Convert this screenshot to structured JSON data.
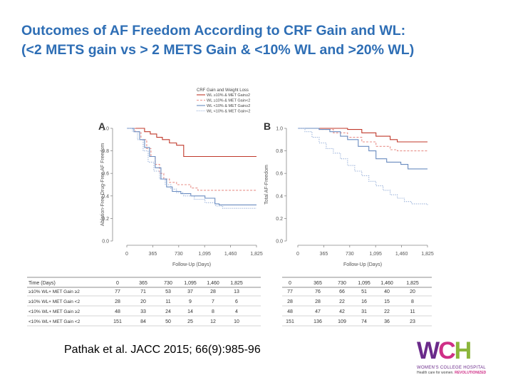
{
  "slide": {
    "title": "Outcomes of AF Freedom According to CRF Gain and WL:\n(<2 METS gain vs > 2 METS Gain & <10% WL and >20% WL)",
    "citation": "Pathak et al. JACC 2015; 66(9):985-96"
  },
  "logo": {
    "letters": [
      "W",
      "C",
      "H"
    ],
    "name": "WOMEN'S COLLEGE HOSPITAL",
    "tagline_prefix": "Health care for women.",
    "tagline_emphasis": "REVOLUTIONIZED"
  },
  "colors": {
    "title": "#2e6eb5",
    "series": [
      "#c0392b",
      "#e8908a",
      "#6a8cc0",
      "#8ea9d6"
    ],
    "axis": "#666666"
  },
  "chart_data": [
    {
      "panel_label": "A",
      "type": "line",
      "step": true,
      "ylabel": "Ablation-Free Drug-Free AF Freedom",
      "xlabel": "Follow-Up (Days)",
      "xlim": [
        0,
        1825
      ],
      "ylim": [
        0,
        1.0
      ],
      "x_ticks": [
        "0",
        "365",
        "730",
        "1,095",
        "1,460",
        "1,825"
      ],
      "y_ticks": [
        "0.0",
        "0.2",
        "0.4",
        "0.6",
        "0.8",
        "1.0"
      ],
      "legend_title": "CRF Gain and Weight Loss",
      "legend_entries": [
        "WL ≥10% & MET Gain≥2",
        "WL ≥10% & MET Gain<2",
        "WL <10% & MET Gain≥2",
        "WL <10% & MET Gain<2"
      ],
      "series": [
        {
          "name": "WL ≥10% & MET Gain≥2",
          "dash": "solid",
          "points": [
            [
              0,
              1.0
            ],
            [
              150,
              1.0
            ],
            [
              250,
              0.97
            ],
            [
              330,
              0.95
            ],
            [
              420,
              0.92
            ],
            [
              500,
              0.9
            ],
            [
              600,
              0.87
            ],
            [
              700,
              0.85
            ],
            [
              800,
              0.75
            ],
            [
              1825,
              0.75
            ]
          ]
        },
        {
          "name": "WL ≥10% & MET Gain<2",
          "dash": "dashed",
          "points": [
            [
              0,
              1.0
            ],
            [
              120,
              0.97
            ],
            [
              200,
              0.9
            ],
            [
              280,
              0.82
            ],
            [
              340,
              0.75
            ],
            [
              400,
              0.68
            ],
            [
              460,
              0.6
            ],
            [
              520,
              0.55
            ],
            [
              600,
              0.52
            ],
            [
              700,
              0.5
            ],
            [
              850,
              0.5
            ],
            [
              900,
              0.47
            ],
            [
              1000,
              0.45
            ],
            [
              1825,
              0.45
            ]
          ]
        },
        {
          "name": "WL <10% & MET Gain≥2",
          "dash": "solid",
          "points": [
            [
              0,
              1.0
            ],
            [
              100,
              0.97
            ],
            [
              180,
              0.9
            ],
            [
              250,
              0.83
            ],
            [
              320,
              0.75
            ],
            [
              400,
              0.65
            ],
            [
              480,
              0.55
            ],
            [
              560,
              0.48
            ],
            [
              640,
              0.44
            ],
            [
              760,
              0.42
            ],
            [
              900,
              0.4
            ],
            [
              1100,
              0.38
            ],
            [
              1240,
              0.33
            ],
            [
              1300,
              0.32
            ],
            [
              1825,
              0.32
            ]
          ]
        },
        {
          "name": "WL <10% & MET Gain<2",
          "dash": "dotted",
          "points": [
            [
              0,
              1.0
            ],
            [
              80,
              0.97
            ],
            [
              150,
              0.9
            ],
            [
              230,
              0.8
            ],
            [
              300,
              0.7
            ],
            [
              380,
              0.62
            ],
            [
              460,
              0.55
            ],
            [
              540,
              0.5
            ],
            [
              620,
              0.46
            ],
            [
              700,
              0.43
            ],
            [
              800,
              0.4
            ],
            [
              950,
              0.37
            ],
            [
              1100,
              0.34
            ],
            [
              1250,
              0.31
            ],
            [
              1350,
              0.29
            ],
            [
              1825,
              0.29
            ]
          ]
        }
      ],
      "risk_table": {
        "header_label": "Time (Days)",
        "time_points": [
          "0",
          "365",
          "730",
          "1,095",
          "1,460",
          "1,825"
        ],
        "rows": [
          {
            "label": "≥10% WL+ MET Gain ≥2",
            "values": [
              "77",
              "71",
              "53",
              "37",
              "28",
              "13"
            ]
          },
          {
            "label": "≥10% WL+ MET Gain <2",
            "values": [
              "28",
              "20",
              "11",
              "9",
              "7",
              "6"
            ]
          },
          {
            "label": "<10% WL+ MET Gain ≥2",
            "values": [
              "48",
              "33",
              "24",
              "14",
              "8",
              "4"
            ]
          },
          {
            "label": "<10% WL+ MET Gain <2",
            "values": [
              "151",
              "84",
              "50",
              "25",
              "12",
              "10"
            ]
          }
        ]
      }
    },
    {
      "panel_label": "B",
      "type": "line",
      "step": true,
      "ylabel": "Total AF-Freedom",
      "xlabel": "Follow-Up (Days)",
      "xlim": [
        0,
        1825
      ],
      "ylim": [
        0,
        1.0
      ],
      "x_ticks": [
        "0",
        "365",
        "730",
        "1,095",
        "1,460",
        "1,825"
      ],
      "y_ticks": [
        "0.0",
        "0.2",
        "0.4",
        "0.6",
        "0.8",
        "1.0"
      ],
      "series": [
        {
          "name": "WL ≥10% & MET Gain≥2",
          "dash": "solid",
          "points": [
            [
              0,
              1.0
            ],
            [
              400,
              1.0
            ],
            [
              700,
              0.99
            ],
            [
              900,
              0.96
            ],
            [
              1100,
              0.93
            ],
            [
              1300,
              0.9
            ],
            [
              1400,
              0.88
            ],
            [
              1825,
              0.88
            ]
          ]
        },
        {
          "name": "WL ≥10% & MET Gain<2",
          "dash": "dashed",
          "points": [
            [
              0,
              1.0
            ],
            [
              300,
              0.99
            ],
            [
              500,
              0.96
            ],
            [
              700,
              0.92
            ],
            [
              900,
              0.88
            ],
            [
              1100,
              0.84
            ],
            [
              1300,
              0.81
            ],
            [
              1400,
              0.8
            ],
            [
              1825,
              0.8
            ]
          ]
        },
        {
          "name": "WL <10% & MET Gain≥2",
          "dash": "solid",
          "points": [
            [
              0,
              1.0
            ],
            [
              300,
              0.99
            ],
            [
              450,
              0.97
            ],
            [
              600,
              0.93
            ],
            [
              700,
              0.9
            ],
            [
              850,
              0.84
            ],
            [
              1000,
              0.8
            ],
            [
              1100,
              0.73
            ],
            [
              1250,
              0.7
            ],
            [
              1450,
              0.68
            ],
            [
              1550,
              0.64
            ],
            [
              1825,
              0.64
            ]
          ]
        },
        {
          "name": "WL <10% & MET Gain<2",
          "dash": "dotted",
          "points": [
            [
              0,
              1.0
            ],
            [
              100,
              0.97
            ],
            [
              200,
              0.92
            ],
            [
              300,
              0.87
            ],
            [
              400,
              0.82
            ],
            [
              500,
              0.78
            ],
            [
              600,
              0.73
            ],
            [
              700,
              0.67
            ],
            [
              800,
              0.62
            ],
            [
              900,
              0.58
            ],
            [
              1000,
              0.53
            ],
            [
              1100,
              0.49
            ],
            [
              1200,
              0.45
            ],
            [
              1300,
              0.41
            ],
            [
              1400,
              0.38
            ],
            [
              1500,
              0.35
            ],
            [
              1600,
              0.33
            ],
            [
              1700,
              0.33
            ],
            [
              1825,
              0.32
            ]
          ]
        }
      ],
      "risk_table": {
        "time_points": [
          "0",
          "365",
          "730",
          "1,095",
          "1,460",
          "1,825"
        ],
        "rows": [
          {
            "values": [
              "77",
              "76",
              "66",
              "51",
              "40",
              "20"
            ]
          },
          {
            "values": [
              "28",
              "28",
              "22",
              "16",
              "15",
              "8"
            ]
          },
          {
            "values": [
              "48",
              "47",
              "42",
              "31",
              "22",
              "11"
            ]
          },
          {
            "values": [
              "151",
              "136",
              "109",
              "74",
              "36",
              "23"
            ]
          }
        ]
      }
    }
  ]
}
